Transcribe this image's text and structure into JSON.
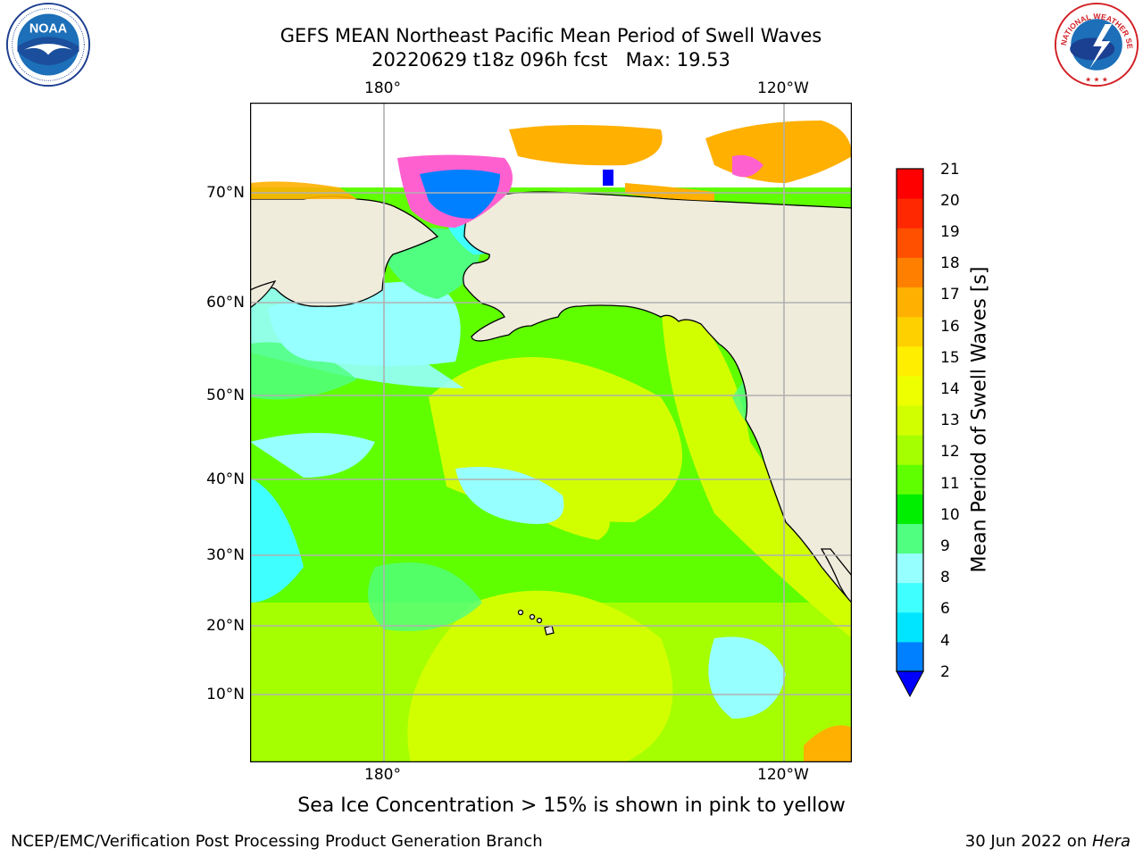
{
  "header": {
    "title_line1": "GEFS MEAN Northeast Pacific Mean Period of Swell Waves",
    "title_line2": "20220629 t18z 096h fcst   Max: 19.53"
  },
  "map": {
    "lon_labels": [
      "180°",
      "120°W"
    ],
    "lat_labels": [
      "70°N",
      "60°N",
      "50°N",
      "40°N",
      "30°N",
      "20°N",
      "10°N"
    ],
    "colors": {
      "land": "#efecdc",
      "coast": "#000000",
      "grid": "#b0b0b0"
    }
  },
  "colorbar": {
    "title": "Mean Period of Swell Waves [s]",
    "tick_labels": [
      "21",
      "20",
      "19",
      "18",
      "17",
      "16",
      "15",
      "14",
      "13",
      "12",
      "11",
      "10",
      "9",
      "8",
      "6",
      "4",
      "2"
    ],
    "colors": [
      "#0000ff",
      "#0080ff",
      "#00e5ff",
      "#40ffff",
      "#96ffff",
      "#50ff80",
      "#00ee00",
      "#60ff00",
      "#a6ff00",
      "#d2ff00",
      "#eeff00",
      "#ffee00",
      "#ffd000",
      "#ffb000",
      "#ff8000",
      "#ff5000",
      "#ff2800",
      "#ff0000"
    ]
  },
  "note": "Sea Ice Concentration > 15% is shown in pink to yellow",
  "footer": {
    "left": "NCEP/EMC/Verification Post Processing Product Generation Branch",
    "right_prefix": "30 Jun 2022 on ",
    "right_host": "Hera"
  },
  "logos": {
    "noaa_text": "NOAA",
    "nws_text": "NATIONAL WEATHER SERVICE"
  }
}
